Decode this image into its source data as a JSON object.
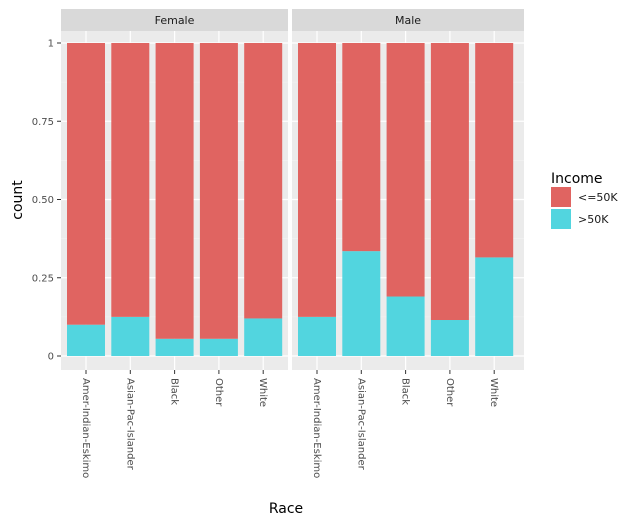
{
  "chart_data": {
    "type": "bar",
    "stacked": true,
    "facet_by": "sex",
    "xlabel": "Race",
    "ylabel": "count",
    "ylim": [
      0,
      1
    ],
    "yticks": [
      0,
      0.25,
      0.5,
      0.75,
      1
    ],
    "ytick_labels": [
      "0",
      "0.25",
      "0.50",
      "0.75",
      "1"
    ],
    "grid": true,
    "legend": {
      "title": "Income",
      "position": "right",
      "entries": [
        {
          "label": "<=50K",
          "color": "#E06461"
        },
        {
          "label": ">50K",
          "color": "#52D5DF"
        }
      ]
    },
    "categories": [
      "Amer-Indian-Eskimo",
      "Asian-Pac-Islander",
      "Black",
      "Other",
      "White"
    ],
    "panels": [
      {
        "label": "Female",
        "series": [
          {
            "name": "<=50K",
            "values": [
              0.9,
              0.875,
              0.945,
              0.945,
              0.88
            ]
          },
          {
            "name": ">50K",
            "values": [
              0.1,
              0.125,
              0.055,
              0.055,
              0.12
            ]
          }
        ]
      },
      {
        "label": "Male",
        "series": [
          {
            "name": "<=50K",
            "values": [
              0.875,
              0.665,
              0.81,
              0.885,
              0.685
            ]
          },
          {
            "name": ">50K",
            "values": [
              0.125,
              0.335,
              0.19,
              0.115,
              0.315
            ]
          }
        ]
      }
    ]
  }
}
